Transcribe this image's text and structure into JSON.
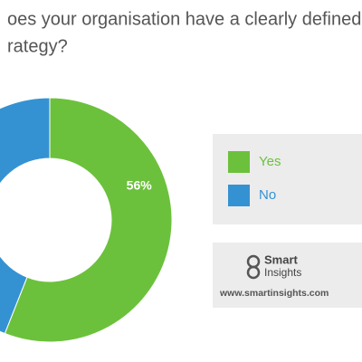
{
  "chart_data": {
    "type": "donut",
    "title_lines": [
      "oes your organisation have a clearly defined",
      "rategy?"
    ],
    "categories": [
      "Yes",
      "No"
    ],
    "values": [
      56,
      44
    ],
    "value_labels": [
      "56%",
      null
    ],
    "colors": [
      "#6cc13c",
      "#3592d2"
    ]
  },
  "branding": {
    "name_lines": [
      "Smart",
      "Insights"
    ],
    "url": "www.smartinsights.com"
  }
}
